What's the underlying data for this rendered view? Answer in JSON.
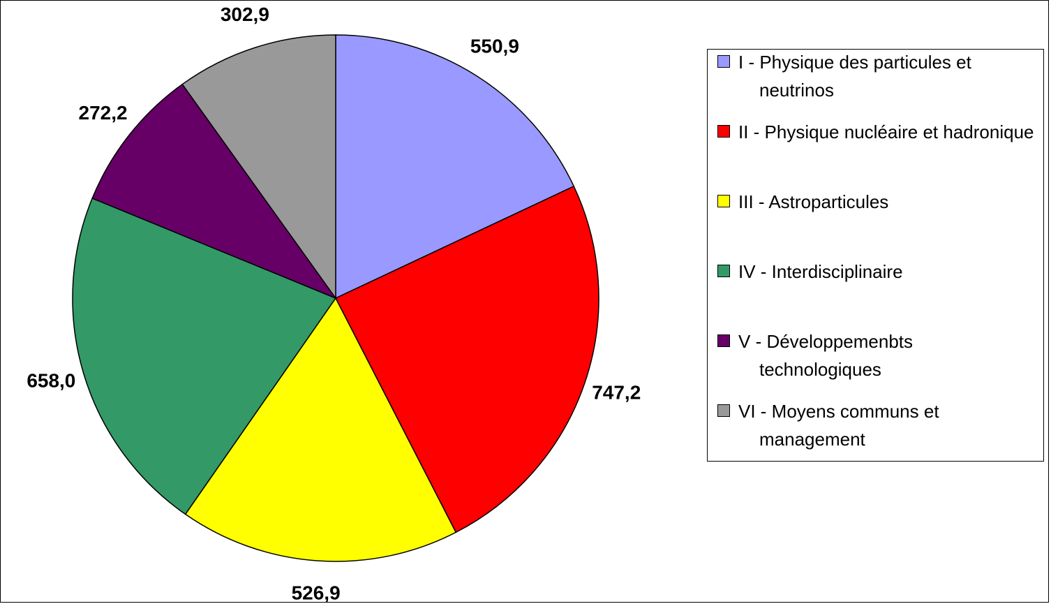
{
  "chart_data": {
    "type": "pie",
    "categories": [
      "I - Physique des particules et neutrinos",
      "II - Physique nucléaire et hadronique",
      "III - Astroparticules",
      "IV - Interdisciplinaire",
      "V - Développemenbts technologiques",
      "VI - Moyens communs et management"
    ],
    "values": [
      550.9,
      747.2,
      526.9,
      658.0,
      272.2,
      302.9
    ],
    "value_labels": [
      "550,9",
      "747,2",
      "526,9",
      "658,0",
      "272,2",
      "302,9"
    ],
    "colors": [
      "#9999ff",
      "#ff0000",
      "#ffff00",
      "#339966",
      "#660066",
      "#999999"
    ],
    "legend": "right"
  }
}
